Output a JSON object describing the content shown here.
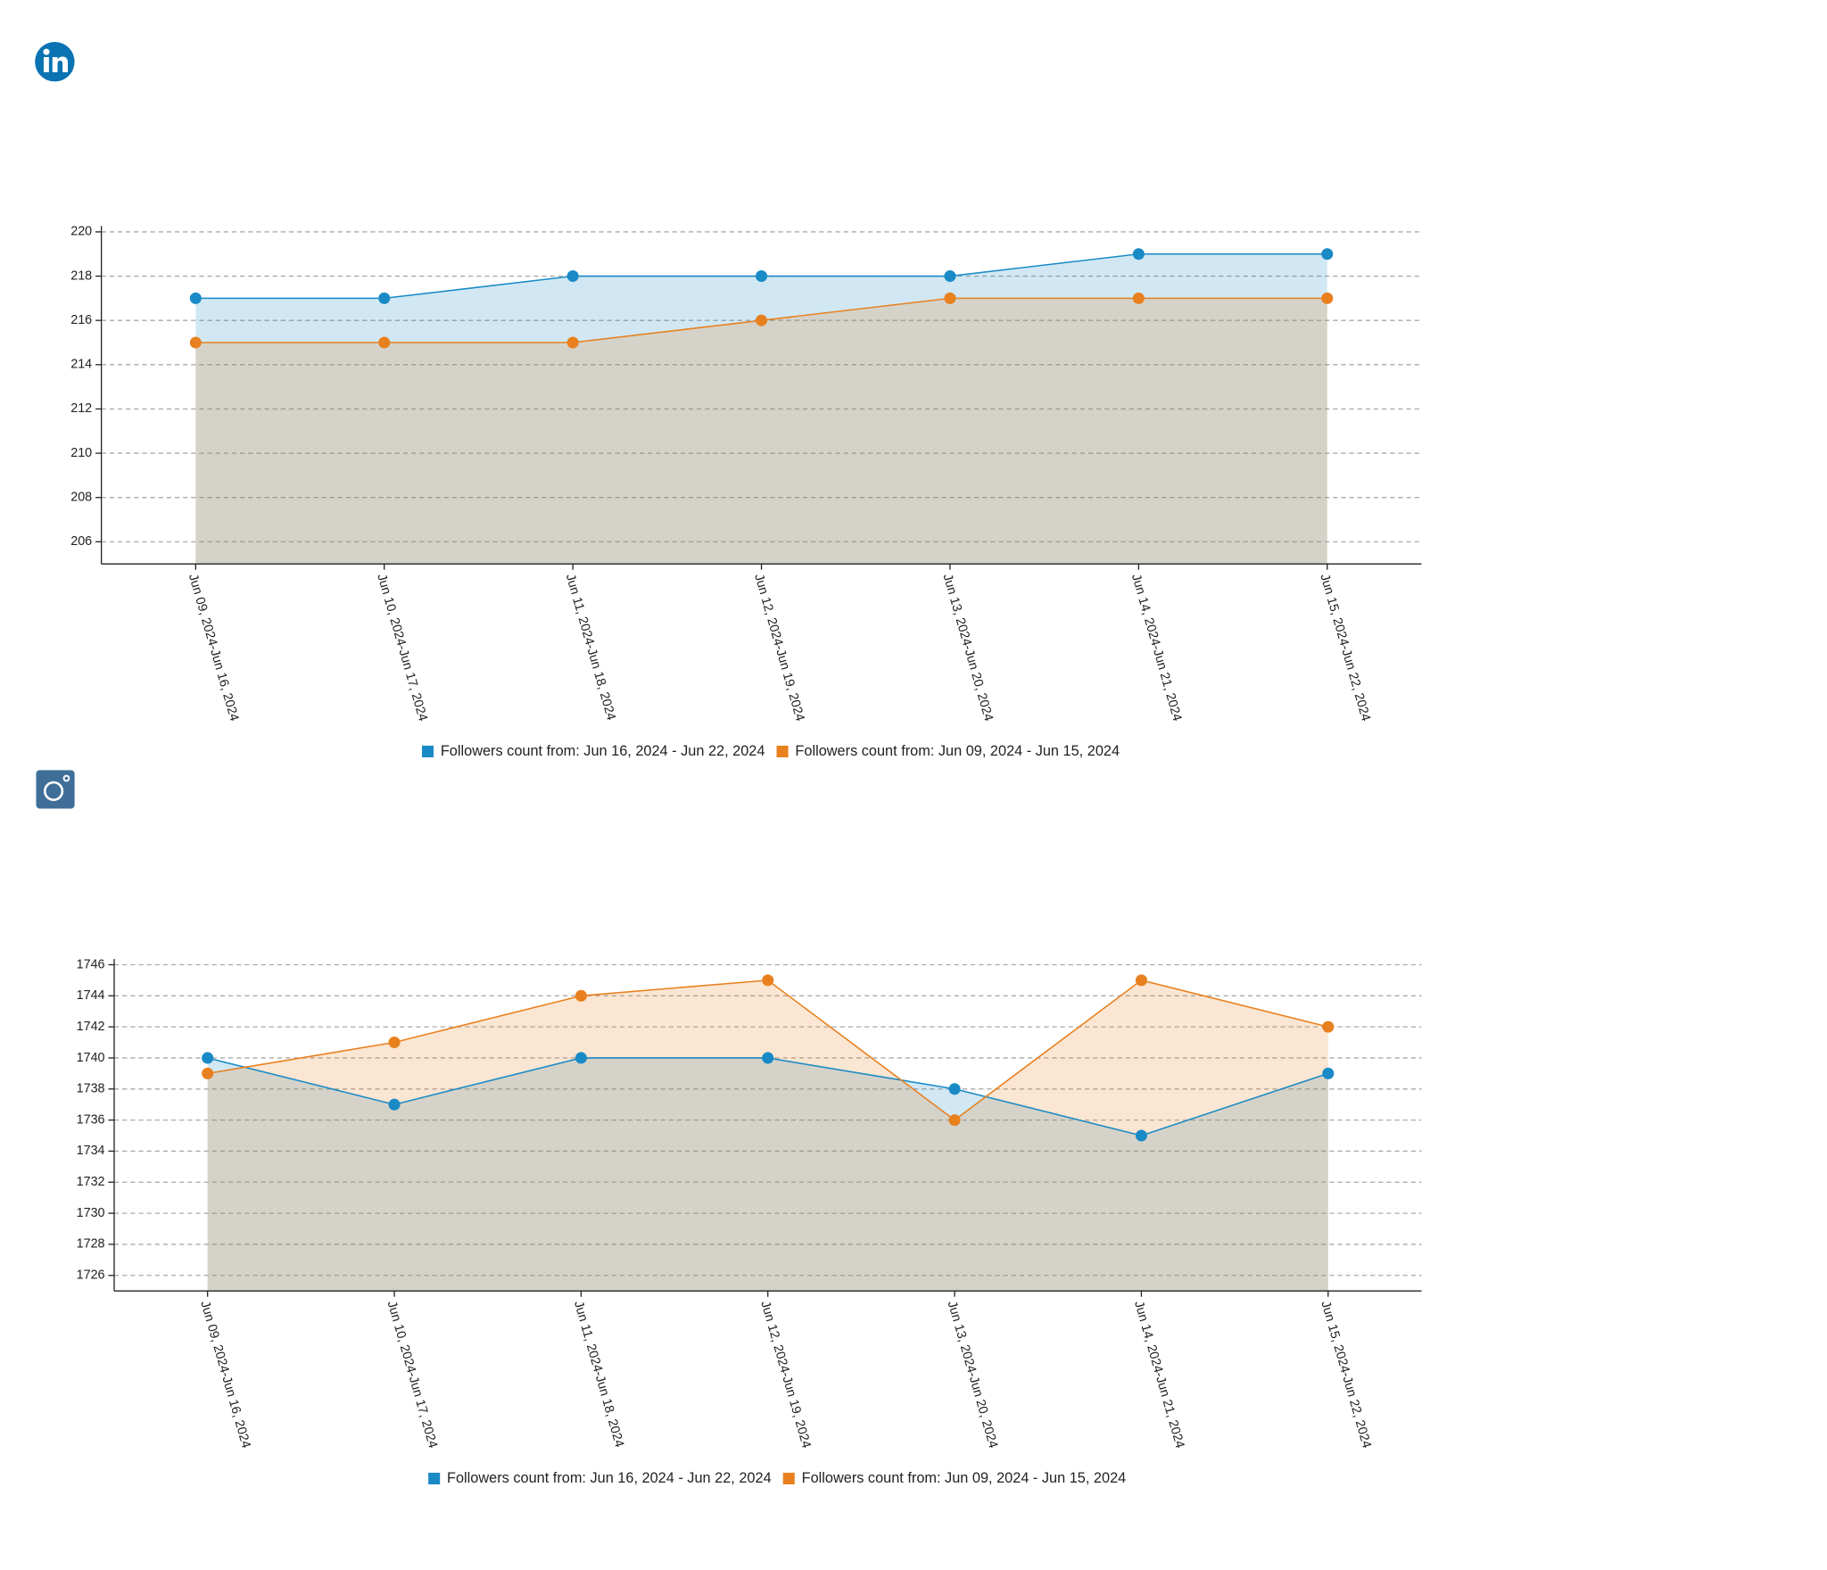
{
  "chart_data": [
    {
      "type": "area",
      "categories": [
        "Jun 09, 2024-Jun 16, 2024",
        "Jun 10, 2024-Jun 17, 2024",
        "Jun 11, 2024-Jun 18, 2024",
        "Jun 12, 2024-Jun 19, 2024",
        "Jun 13, 2024-Jun 20, 2024",
        "Jun 14, 2024-Jun 21, 2024",
        "Jun 15, 2024-Jun 22, 2024"
      ],
      "series": [
        {
          "name": "Followers count from: Jun 16, 2024 - Jun 22, 2024",
          "color": "#1a8ac6",
          "values": [
            217,
            217,
            218,
            218,
            218,
            219,
            219
          ]
        },
        {
          "name": "Followers count from: Jun 09, 2024 - Jun 15, 2024",
          "color": "#e8801f",
          "values": [
            215,
            215,
            215,
            216,
            217,
            217,
            217
          ]
        }
      ],
      "ylim": [
        205,
        220
      ],
      "yticks": [
        206,
        208,
        210,
        212,
        214,
        216,
        218,
        220
      ],
      "grid": true,
      "legend": "bottom"
    },
    {
      "type": "area",
      "categories": [
        "Jun 09, 2024-Jun 16, 2024",
        "Jun 10, 2024-Jun 17, 2024",
        "Jun 11, 2024-Jun 18, 2024",
        "Jun 12, 2024-Jun 19, 2024",
        "Jun 13, 2024-Jun 20, 2024",
        "Jun 14, 2024-Jun 21, 2024",
        "Jun 15, 2024-Jun 22, 2024"
      ],
      "series": [
        {
          "name": "Followers count from: Jun 16, 2024 - Jun 22, 2024",
          "color": "#1a8ac6",
          "values": [
            1740,
            1737,
            1740,
            1740,
            1738,
            1735,
            1739
          ]
        },
        {
          "name": "Followers count from: Jun 09, 2024 - Jun 15, 2024",
          "color": "#e8801f",
          "values": [
            1739,
            1741,
            1744,
            1745,
            1736,
            1745,
            1742
          ]
        }
      ],
      "ylim": [
        1725,
        1746
      ],
      "yticks": [
        1726,
        1728,
        1730,
        1732,
        1734,
        1736,
        1738,
        1740,
        1742,
        1744,
        1746
      ],
      "grid": true,
      "legend": "bottom"
    }
  ]
}
